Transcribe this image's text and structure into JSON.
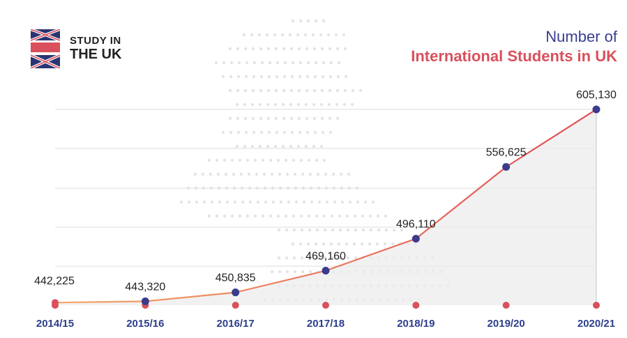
{
  "logo": {
    "line1": "STUDY IN",
    "line2": "THE UK",
    "icon": "uk-flag-icon"
  },
  "title": {
    "line1": "Number of",
    "line2": "International Students in UK"
  },
  "colors": {
    "line_start": "#f5a86a",
    "line_end": "#e04a55",
    "point": "#3b3a8c",
    "axis_dot": "#d9505c",
    "area": "#ececec",
    "tick_text": "#2c3f8c",
    "value_text": "#222222",
    "title_blue": "#3a3f8f",
    "title_red": "#d9505c"
  },
  "chart_data": {
    "type": "area",
    "title": "Number of International Students in UK",
    "xlabel": "",
    "ylabel": "",
    "categories": [
      "2014/15",
      "2015/16",
      "2016/17",
      "2017/18",
      "2018/19",
      "2019/20",
      "2020/21"
    ],
    "values": [
      442225,
      443320,
      450835,
      469160,
      496110,
      556625,
      605130
    ],
    "value_labels": [
      "442,225",
      "443,320",
      "450,835",
      "469,160",
      "496,110",
      "556,625",
      "605,130"
    ],
    "grid": "horizontal",
    "legend": "none"
  }
}
